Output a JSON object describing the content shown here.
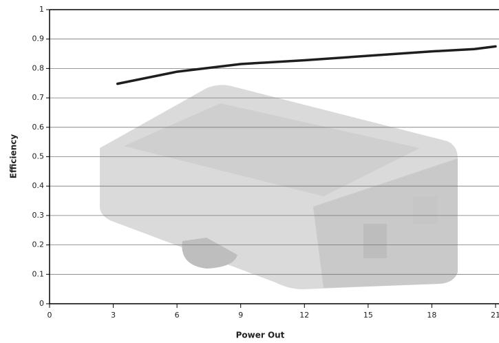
{
  "chart_data": {
    "type": "line",
    "x_label": "Power Out",
    "y_label": "Efficiency",
    "x": [
      3.2,
      6,
      9,
      12,
      15,
      18,
      20,
      21
    ],
    "values": [
      0.748,
      0.789,
      0.815,
      0.828,
      0.843,
      0.858,
      0.866,
      0.875
    ],
    "color": "#1e1e1e",
    "xlim": [
      0,
      21
    ],
    "xticks": [
      0,
      3,
      6,
      9,
      12,
      15,
      18,
      21
    ],
    "ylim": [
      0,
      1
    ],
    "yticks": [
      0,
      0.1,
      0.2,
      0.3,
      0.4,
      0.5,
      0.6,
      0.7,
      0.8,
      0.9,
      1
    ],
    "grid": true
  }
}
